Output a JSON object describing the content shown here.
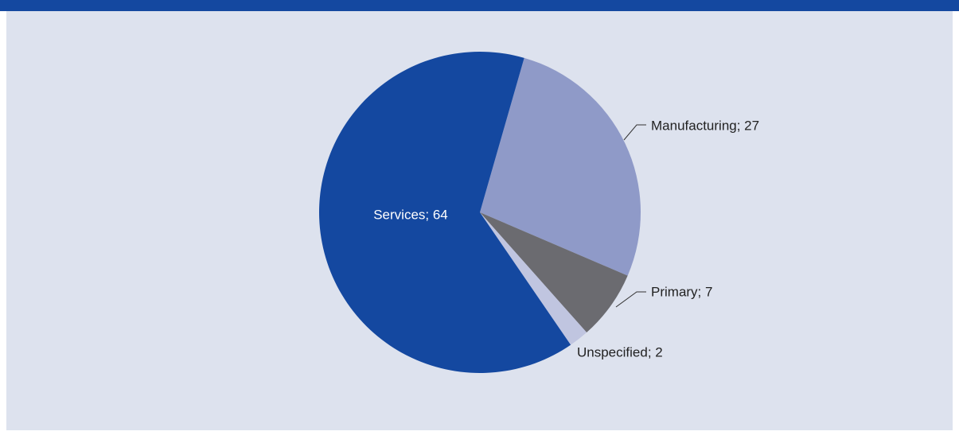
{
  "chart_data": {
    "type": "pie",
    "categories": [
      "Manufacturing",
      "Primary",
      "Unspecified",
      "Services"
    ],
    "values": [
      27,
      7,
      2,
      64
    ],
    "value_labels": [
      "Manufacturing; 27",
      "Primary; 7",
      "Unspecified; 2",
      "Services; 64"
    ],
    "colors": [
      "#8f9ac8",
      "#6b6b70",
      "#c0c5e0",
      "#1448a0"
    ]
  }
}
